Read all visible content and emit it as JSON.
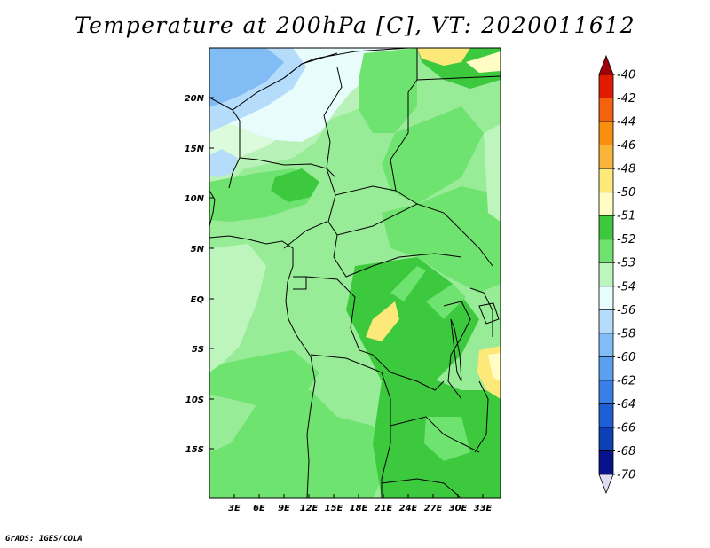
{
  "title": "Temperature at 200hPa [C], VT: 2020011612",
  "credit": "GrADS: IGES/COLA",
  "map": {
    "lat_ticks": [
      "20N",
      "15N",
      "10N",
      "5N",
      "EQ",
      "5S",
      "10S",
      "15S"
    ],
    "lon_ticks": [
      "3E",
      "6E",
      "9E",
      "12E",
      "15E",
      "18E",
      "21E",
      "24E",
      "27E",
      "30E",
      "33E"
    ]
  },
  "colorbar": {
    "labels": [
      "-40",
      "-42",
      "-44",
      "-46",
      "-48",
      "-50",
      "-51",
      "-52",
      "-53",
      "-54",
      "-56",
      "-58",
      "-60",
      "-62",
      "-64",
      "-66",
      "-68",
      "-70"
    ],
    "colors": [
      "#a0000a",
      "#e11b02",
      "#f4620d",
      "#f88f0e",
      "#fbb43a",
      "#fde87a",
      "#fffcc4",
      "#3dc93d",
      "#6fe36f",
      "#bdf5bd",
      "#e7fdfb",
      "#b5dcfa",
      "#82bcf4",
      "#5aa0ef",
      "#3a7ee7",
      "#1f5fd5",
      "#0d3fb5",
      "#09128b",
      "#e1dcf3"
    ]
  }
}
